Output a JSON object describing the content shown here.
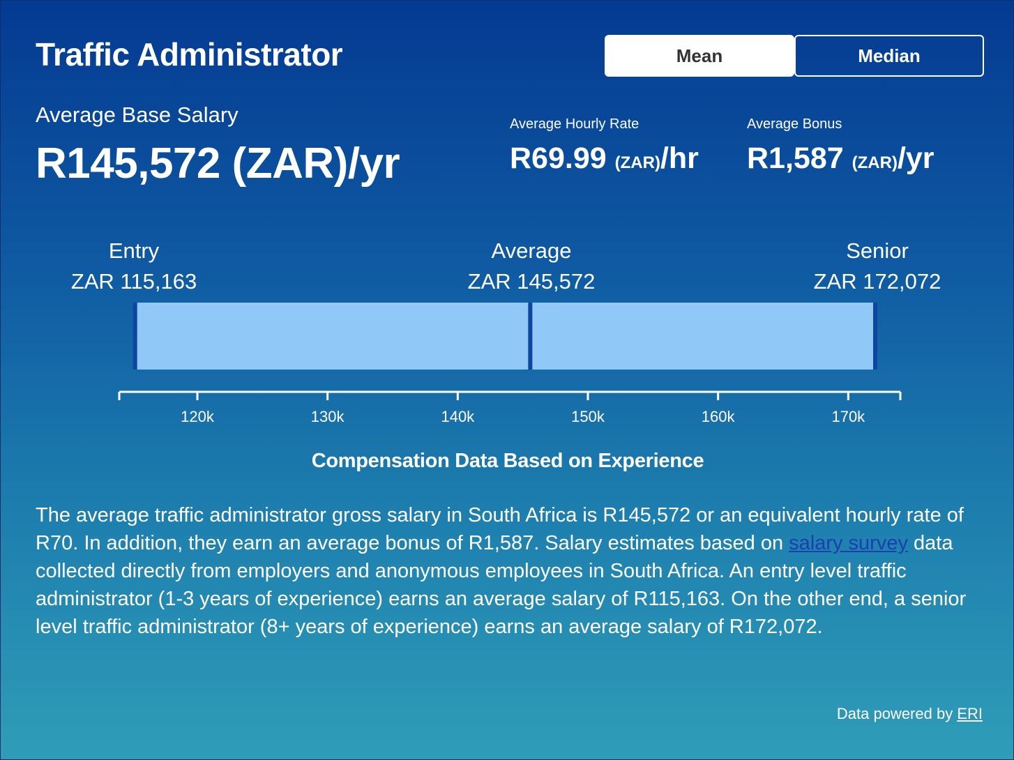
{
  "header": {
    "title": "Traffic Administrator",
    "toggle_mean": "Mean",
    "toggle_median": "Median"
  },
  "salary": {
    "base_label": "Average Base Salary",
    "base_value": "R145,572 (ZAR)/yr",
    "hourly_label": "Average Hourly Rate",
    "hourly_amount": "R69.99",
    "hourly_unit": "(ZAR)",
    "hourly_suffix": "/hr",
    "bonus_label": "Average Bonus",
    "bonus_amount": "R1,587",
    "bonus_unit": "(ZAR)",
    "bonus_suffix": "/yr"
  },
  "levels": {
    "entry_label": "Entry",
    "entry_value": "ZAR 115,163",
    "average_label": "Average",
    "average_value": "ZAR 145,572",
    "senior_label": "Senior",
    "senior_value": "ZAR 172,072"
  },
  "chart_data": {
    "type": "bar",
    "title": "Compensation Data Based on Experience",
    "range": {
      "low": 115163,
      "average": 145572,
      "high": 172072
    },
    "xlim": [
      114000,
      174000
    ],
    "ticks": [
      120000,
      130000,
      140000,
      150000,
      160000,
      170000
    ],
    "tick_labels": [
      "120k",
      "130k",
      "140k",
      "150k",
      "160k",
      "170k"
    ],
    "colors": {
      "bar": "#90c8f8",
      "marker": "#0d47a1",
      "axis": "#ffffff"
    }
  },
  "description": {
    "part1": "The average traffic administrator gross salary in South Africa is R145,572 or an equivalent hourly rate of R70. In addition, they earn an average bonus of R1,587. Salary estimates based on ",
    "link_text": "salary survey",
    "part2": " data collected directly from employers and anonymous employees in South Africa. An entry level traffic administrator (1-3 years of experience) earns an average salary of R115,163. On the other end, a senior level traffic administrator (8+ years of experience) earns an average salary of R172,072."
  },
  "footer": {
    "powered_text": "Data powered by ",
    "eri_link": "ERI"
  }
}
